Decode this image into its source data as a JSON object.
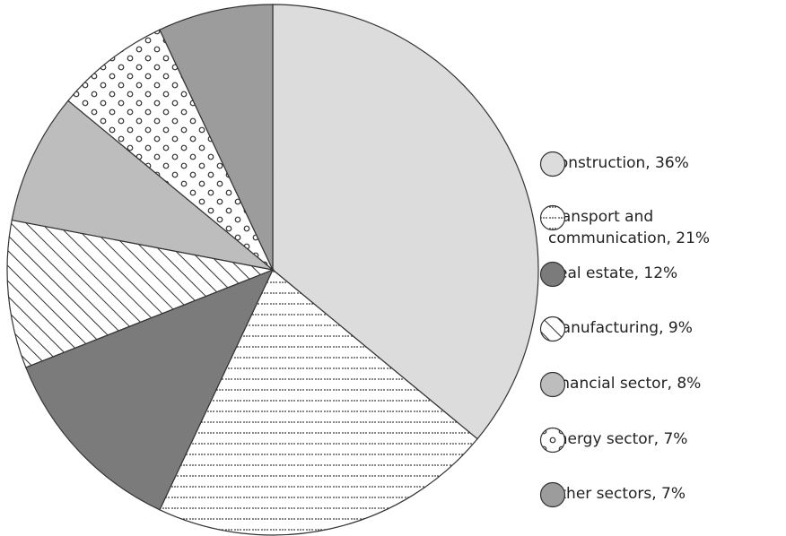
{
  "chart_data": {
    "type": "pie",
    "categories": [
      "Construction, 36%",
      "Transport and communication, 21%",
      "Real estate, 12%",
      "Manufacturing, 9%",
      "Financial sector, 8%",
      "Energy sector, 7%",
      "Other sectors, 7%"
    ],
    "values": [
      36,
      21,
      12,
      9,
      8,
      7,
      7
    ],
    "colors": [
      "#dcdcdc",
      "#ffffff",
      "#7b7b7b",
      "#ffffff",
      "#bdbdbd",
      "#ffffff",
      "#9c9c9c"
    ],
    "patterns": [
      "solid",
      "dots",
      "solid",
      "hatch",
      "solid",
      "rings",
      "solid"
    ],
    "legend": "right"
  }
}
